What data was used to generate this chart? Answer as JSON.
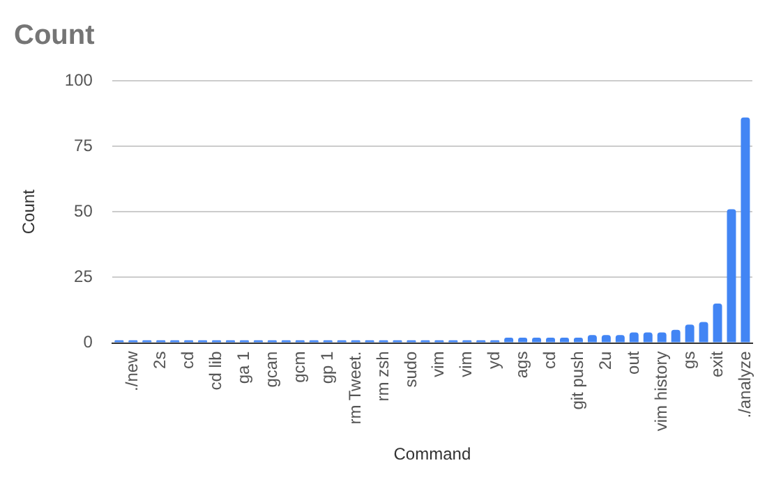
{
  "chart_data": {
    "type": "bar",
    "title": "Count",
    "xlabel": "Command",
    "ylabel": "Count",
    "categories": [
      null,
      "./new",
      null,
      "2s",
      null,
      "cd",
      null,
      "cd lib",
      null,
      "ga 1",
      null,
      "gcan",
      null,
      "gcm",
      null,
      "gp 1",
      null,
      "rm Tweet.",
      null,
      "rm zsh",
      null,
      "sudo",
      null,
      "vim",
      null,
      "vim",
      null,
      "yd",
      null,
      "ags",
      null,
      "cd",
      null,
      "git push",
      null,
      "2u",
      null,
      "out",
      null,
      "vim history",
      null,
      "gs",
      null,
      "exit",
      null,
      "./analyze"
    ],
    "values": [
      1,
      1,
      1,
      1,
      1,
      1,
      1,
      1,
      1,
      1,
      1,
      1,
      1,
      1,
      1,
      1,
      1,
      1,
      1,
      1,
      1,
      1,
      1,
      1,
      1,
      1,
      1,
      1,
      2,
      2,
      2,
      2,
      2,
      2,
      3,
      3,
      3,
      4,
      4,
      4,
      5,
      7,
      8,
      15,
      51,
      86
    ],
    "color": "#4285f4",
    "ylim": [
      0,
      100
    ],
    "yticks": [
      0,
      25,
      50,
      75,
      100
    ],
    "grid": "y"
  }
}
